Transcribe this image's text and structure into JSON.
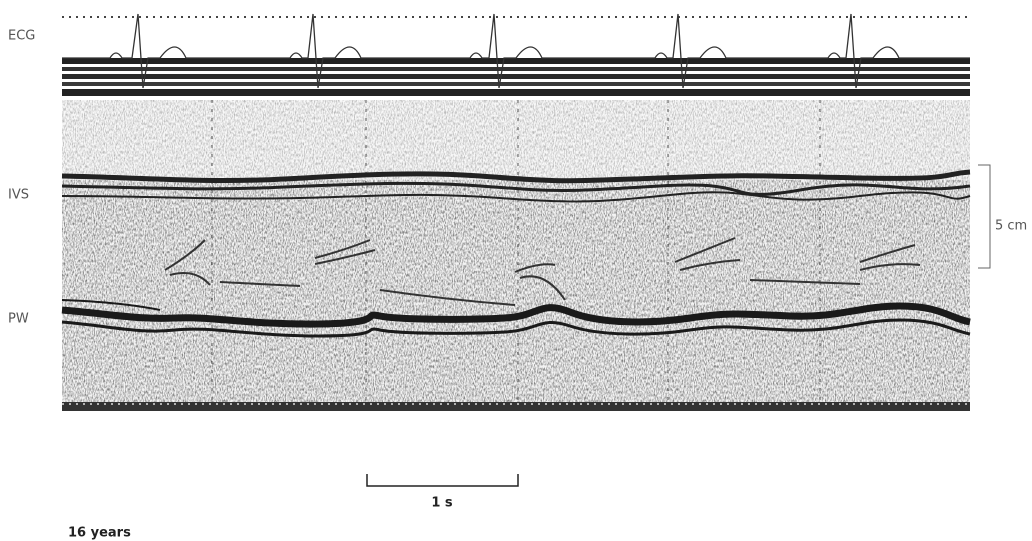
{
  "labels": {
    "ecg": "ECG",
    "ivs": "IVS",
    "pw": "PW",
    "depth_scale": "5 cm",
    "time_scale": "1 s",
    "caption": "16 years"
  }
}
